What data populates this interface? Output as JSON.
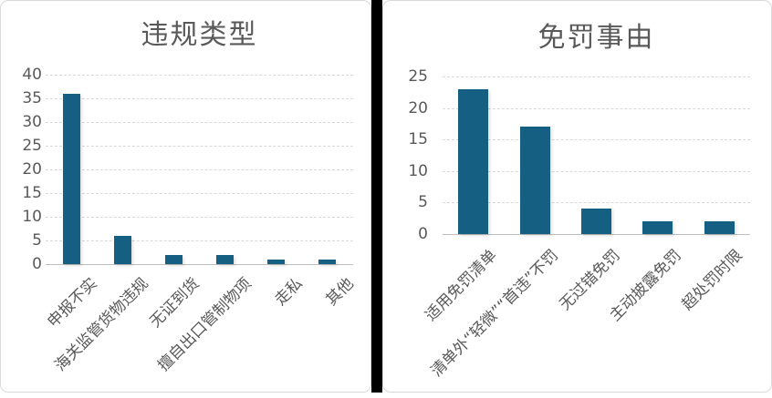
{
  "chart_data": [
    {
      "type": "bar",
      "title": "违规类型",
      "categories": [
        "申报不实",
        "海关监管货物违规",
        "无证到货",
        "擅自出口管制物项",
        "走私",
        "其他"
      ],
      "values": [
        36,
        6,
        2,
        2,
        1,
        1
      ],
      "xlabel": "",
      "ylabel": "",
      "ylim": [
        0,
        40
      ],
      "y_ticks": [
        0,
        5,
        10,
        15,
        20,
        25,
        30,
        35,
        40
      ],
      "legend": "none",
      "grid": "horizontal"
    },
    {
      "type": "bar",
      "title": "免罚事由",
      "categories": [
        "适用免罚清单",
        "清单外“轻微”“首违”不罚",
        "无过错免罚",
        "主动披露免罚",
        "超处罚时限"
      ],
      "values": [
        23,
        17,
        4,
        2,
        2
      ],
      "xlabel": "",
      "ylabel": "",
      "ylim": [
        0,
        25
      ],
      "y_ticks": [
        0,
        5,
        10,
        15,
        20,
        25
      ],
      "legend": "none",
      "grid": "horizontal"
    }
  ],
  "colors": {
    "bar": "#156082",
    "title_text": "#595959",
    "axis_text": "#595959",
    "gridline": "#d9d9d9",
    "axis_line": "#bfbfbf",
    "panel_border": "#d9d9d9",
    "divider": "#000000",
    "background": "#ffffff"
  }
}
